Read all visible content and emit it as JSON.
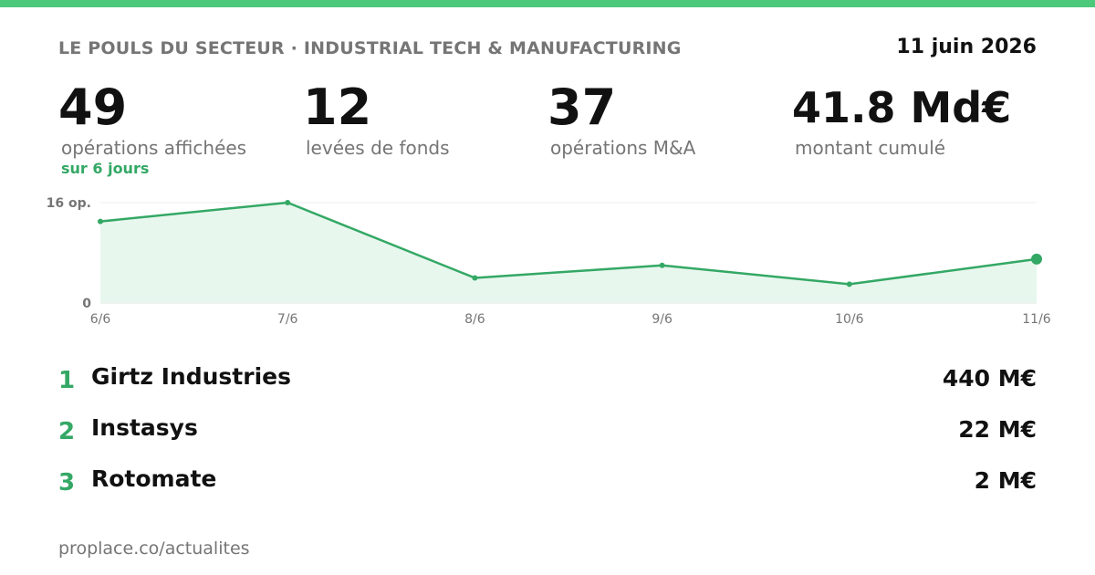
{
  "header": {
    "kicker": "LE POULS DU SECTEUR · INDUSTRIAL TECH & MANUFACTURING",
    "date": "11 juin 2026"
  },
  "colors": {
    "accent": "#34a865",
    "top_bar": "#4cc97a",
    "area_fill": "#e8f7ee",
    "muted_text": "#757575"
  },
  "stats": [
    {
      "value": "49",
      "label": "opérations affichées",
      "sub": "sur 6 jours"
    },
    {
      "value": "12",
      "label": "levées de fonds",
      "sub": ""
    },
    {
      "value": "37",
      "label": "opérations M&A",
      "sub": ""
    },
    {
      "value": "41.8 Md€",
      "label": "montant cumulé",
      "sub": ""
    }
  ],
  "chart_data": {
    "type": "area",
    "title": "",
    "xlabel": "",
    "ylabel": "",
    "categories": [
      "6/6",
      "7/6",
      "8/6",
      "9/6",
      "10/6",
      "11/6"
    ],
    "values": [
      13,
      16,
      4,
      6,
      3,
      7
    ],
    "ylim": [
      0,
      16
    ],
    "y_tick_labels": [
      {
        "value": 16,
        "label": "16 op."
      },
      {
        "value": 0,
        "label": "0"
      }
    ],
    "grid": true,
    "legend": "none",
    "highlight_last_point": true
  },
  "ranking": [
    {
      "rank": "1",
      "name": "Girtz Industries",
      "amount": "440 M€"
    },
    {
      "rank": "2",
      "name": "Instasys",
      "amount": "22 M€"
    },
    {
      "rank": "3",
      "name": "Rotomate",
      "amount": "2 M€"
    }
  ],
  "footer": {
    "url": "proplace.co/actualites"
  }
}
